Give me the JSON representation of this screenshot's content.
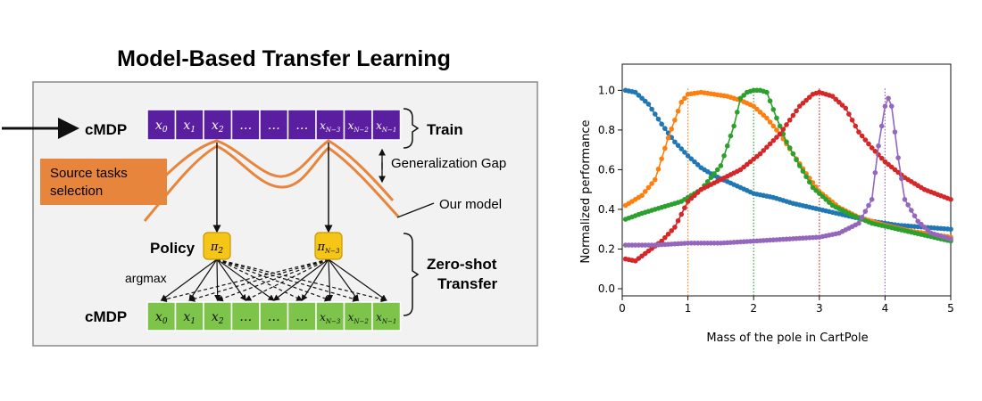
{
  "diagram": {
    "title": "Model-Based Transfer Learning",
    "cmdp_top_label": "cMDP",
    "cmdp_bottom_label": "cMDP",
    "train_label": "Train",
    "generalization_gap_label": "Generalization Gap",
    "source_tasks_line1": "Source tasks",
    "source_tasks_line2": "selection",
    "our_model_label": "Our model",
    "policy_label": "Policy",
    "argmax_label": "argmax",
    "zero_shot_line1": "Zero-shot",
    "zero_shot_line2": "Transfer",
    "policy_nodes": [
      {
        "base": "π",
        "sub": "2"
      },
      {
        "base": "π",
        "sub": "N−3"
      }
    ],
    "cells": [
      {
        "base": "x",
        "sub": "0"
      },
      {
        "base": "x",
        "sub": "1"
      },
      {
        "base": "x",
        "sub": "2"
      },
      {
        "base": "…",
        "sub": ""
      },
      {
        "base": "…",
        "sub": ""
      },
      {
        "base": "…",
        "sub": ""
      },
      {
        "base": "x",
        "sub": "N−3"
      },
      {
        "base": "x",
        "sub": "N−2"
      },
      {
        "base": "x",
        "sub": "N−1"
      }
    ],
    "colors": {
      "top_row": "#5a1fa0",
      "bottom_row": "#7ec44a",
      "policy": "#f5c518",
      "orange": "#e8853d",
      "panel_bg": "#f2f2f2"
    }
  },
  "chart_data": {
    "type": "line",
    "xlabel": "Mass of the pole in CartPole",
    "ylabel": "Normalized performance",
    "xlim": [
      0,
      5
    ],
    "ylim": [
      0,
      1
    ],
    "xticks": [
      "0",
      "1",
      "2",
      "3",
      "4",
      "5"
    ],
    "yticks": [
      "0.0",
      "0.2",
      "0.4",
      "0.6",
      "0.8",
      "1.0"
    ],
    "series": [
      {
        "color": "#1f77b4",
        "vline": null,
        "x": [
          0.05,
          0.2,
          0.4,
          0.6,
          0.8,
          1.0,
          1.2,
          1.4,
          1.6,
          1.8,
          2.0,
          2.3,
          2.6,
          3.0,
          3.4,
          3.8,
          4.2,
          4.6,
          5.0
        ],
        "y": [
          1.0,
          0.99,
          0.93,
          0.83,
          0.74,
          0.67,
          0.61,
          0.57,
          0.54,
          0.51,
          0.48,
          0.46,
          0.43,
          0.4,
          0.37,
          0.34,
          0.32,
          0.31,
          0.3
        ]
      },
      {
        "color": "#ff7f0e",
        "vline": 1.0,
        "x": [
          0.05,
          0.3,
          0.5,
          0.7,
          0.9,
          1.0,
          1.2,
          1.4,
          1.6,
          1.8,
          2.0,
          2.2,
          2.4,
          2.6,
          2.8,
          3.0,
          3.3,
          3.6,
          4.0,
          4.4,
          4.8,
          5.0
        ],
        "y": [
          0.42,
          0.47,
          0.55,
          0.76,
          0.94,
          0.98,
          0.99,
          0.98,
          0.97,
          0.95,
          0.92,
          0.86,
          0.78,
          0.68,
          0.58,
          0.49,
          0.41,
          0.36,
          0.32,
          0.29,
          0.27,
          0.26
        ]
      },
      {
        "color": "#2ca02c",
        "vline": 2.0,
        "x": [
          0.05,
          0.3,
          0.6,
          0.9,
          1.2,
          1.5,
          1.7,
          1.8,
          1.9,
          2.0,
          2.1,
          2.2,
          2.35,
          2.5,
          2.7,
          2.9,
          3.2,
          3.5,
          3.8,
          4.2,
          4.6,
          5.0
        ],
        "y": [
          0.35,
          0.38,
          0.41,
          0.44,
          0.5,
          0.62,
          0.82,
          0.96,
          0.99,
          1.0,
          1.0,
          0.99,
          0.86,
          0.74,
          0.62,
          0.51,
          0.42,
          0.37,
          0.33,
          0.3,
          0.27,
          0.24
        ]
      },
      {
        "color": "#d62728",
        "vline": 3.0,
        "x": [
          0.05,
          0.2,
          0.4,
          0.6,
          0.8,
          1.0,
          1.2,
          1.5,
          1.8,
          2.1,
          2.4,
          2.7,
          2.9,
          3.0,
          3.2,
          3.4,
          3.6,
          3.8,
          4.0,
          4.3,
          4.6,
          5.0
        ],
        "y": [
          0.15,
          0.14,
          0.19,
          0.24,
          0.31,
          0.44,
          0.5,
          0.55,
          0.6,
          0.68,
          0.78,
          0.92,
          0.98,
          0.99,
          0.97,
          0.91,
          0.79,
          0.71,
          0.64,
          0.56,
          0.5,
          0.45
        ]
      },
      {
        "color": "#9467bd",
        "vline": 4.0,
        "x": [
          0.05,
          0.5,
          1.0,
          1.5,
          2.0,
          2.5,
          3.0,
          3.3,
          3.6,
          3.8,
          3.9,
          4.0,
          4.05,
          4.1,
          4.2,
          4.3,
          4.5,
          4.7,
          5.0
        ],
        "y": [
          0.22,
          0.22,
          0.23,
          0.23,
          0.24,
          0.25,
          0.26,
          0.28,
          0.33,
          0.45,
          0.72,
          0.92,
          0.96,
          0.92,
          0.66,
          0.45,
          0.34,
          0.28,
          0.25
        ]
      }
    ]
  }
}
